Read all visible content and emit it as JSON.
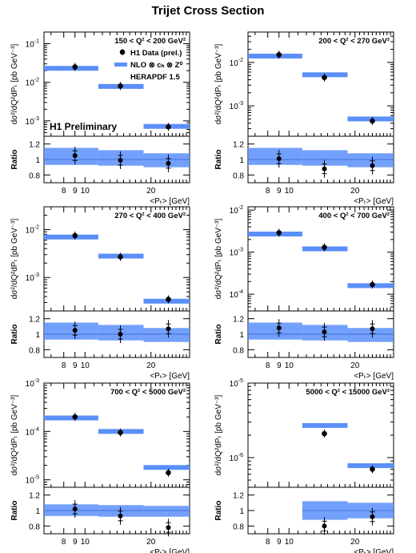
{
  "figure": {
    "title": "Trijet Cross Section",
    "accent_color": "#5b8ff9",
    "band_color": "#5b8ff9",
    "marker_color": "#000000"
  },
  "chart_data": [
    {
      "type": "scatter",
      "panel_label": "150 < Q² < 200 GeV²",
      "ylabel": "dσ²/dQ²dPₜ [pb GeV⁻³]",
      "ratio_ylabel": "Ratio",
      "xlabel": "<Pₜ> [GeV]",
      "x_scale": "log",
      "y_scale": "log",
      "xlim": [
        6.5,
        30
      ],
      "ylim": [
        0.0004,
        0.2
      ],
      "ratio_ylim": [
        0.7,
        1.3
      ],
      "x_tick_labels": [
        "8",
        "9",
        "10",
        "20"
      ],
      "ratio_tick_labels": [
        "0.8",
        "1",
        "1.2"
      ],
      "bins": [
        [
          6.5,
          11.5
        ],
        [
          11.5,
          18.5
        ],
        [
          18.5,
          30
        ]
      ],
      "data_x": [
        9,
        14.5,
        24
      ],
      "data_y": [
        0.025,
        0.008,
        0.0007
      ],
      "nlo_y": [
        0.023,
        0.0078,
        0.00072
      ],
      "ratio_values": [
        1.05,
        0.99,
        0.95
      ],
      "ratio_band": [
        [
          0.93,
          1.15
        ],
        [
          0.92,
          1.12
        ],
        [
          0.9,
          1.08
        ]
      ],
      "legend": [
        "H1 Data (prel.)",
        "NLO ⊗ cₕ ⊗ Z⁰",
        "HERAPDF 1.5"
      ],
      "annotation": "H1 Preliminary"
    },
    {
      "type": "scatter",
      "panel_label": "200 < Q² < 270 GeV²",
      "ylabel": "dσ²/dQ²dPₜ [pb GeV⁻³]",
      "ratio_ylabel": "Ratio",
      "xlabel": "<Pₜ> [GeV]",
      "x_scale": "log",
      "y_scale": "log",
      "xlim": [
        6.5,
        30
      ],
      "ylim": [
        0.0002,
        0.05
      ],
      "ratio_ylim": [
        0.7,
        1.3
      ],
      "x_tick_labels": [
        "8",
        "9",
        "10",
        "20"
      ],
      "ratio_tick_labels": [
        "0.8",
        "1",
        "1.2"
      ],
      "bins": [
        [
          6.5,
          11.5
        ],
        [
          11.5,
          18.5
        ],
        [
          18.5,
          30
        ]
      ],
      "data_x": [
        9,
        14.5,
        24
      ],
      "data_y": [
        0.015,
        0.0045,
        0.00045
      ],
      "nlo_y": [
        0.014,
        0.0052,
        0.0005
      ],
      "ratio_values": [
        1.01,
        0.88,
        0.92
      ],
      "ratio_band": [
        [
          0.93,
          1.15
        ],
        [
          0.92,
          1.12
        ],
        [
          0.9,
          1.08
        ]
      ]
    },
    {
      "type": "scatter",
      "panel_label": "270 < Q² < 400 GeV²",
      "ylabel": "dσ²/dQ²dPₜ [pb GeV⁻³]",
      "ratio_ylabel": "Ratio",
      "xlabel": "<Pₜ> [GeV]",
      "x_scale": "log",
      "y_scale": "log",
      "xlim": [
        6.5,
        30
      ],
      "ylim": [
        0.0002,
        0.03
      ],
      "ratio_ylim": [
        0.7,
        1.3
      ],
      "x_tick_labels": [
        "8",
        "9",
        "10",
        "20"
      ],
      "ratio_tick_labels": [
        "0.8",
        "1",
        "1.2"
      ],
      "bins": [
        [
          6.5,
          11.5
        ],
        [
          11.5,
          18.5
        ],
        [
          18.5,
          30
        ]
      ],
      "data_x": [
        9,
        14.5,
        24
      ],
      "data_y": [
        0.0075,
        0.0027,
        0.00035
      ],
      "nlo_y": [
        0.007,
        0.0028,
        0.00032
      ],
      "ratio_values": [
        1.05,
        1.0,
        1.07
      ],
      "ratio_band": [
        [
          0.93,
          1.15
        ],
        [
          0.92,
          1.12
        ],
        [
          0.9,
          1.08
        ]
      ]
    },
    {
      "type": "scatter",
      "panel_label": "400 < Q² < 700 GeV²",
      "ylabel": "dσ²/dQ²dPₜ [pb GeV⁻³]",
      "ratio_ylabel": "Ratio",
      "xlabel": "<Pₜ> [GeV]",
      "x_scale": "log",
      "y_scale": "log",
      "xlim": [
        6.5,
        30
      ],
      "ylim": [
        4e-05,
        0.012
      ],
      "ratio_ylim": [
        0.7,
        1.3
      ],
      "x_tick_labels": [
        "8",
        "9",
        "10",
        "20"
      ],
      "ratio_tick_labels": [
        "0.8",
        "1",
        "1.2"
      ],
      "bins": [
        [
          6.5,
          11.5
        ],
        [
          11.5,
          18.5
        ],
        [
          18.5,
          30
        ]
      ],
      "data_x": [
        9,
        14.5,
        24
      ],
      "data_y": [
        0.0029,
        0.0013,
        0.00017
      ],
      "nlo_y": [
        0.0027,
        0.0012,
        0.00016
      ],
      "ratio_values": [
        1.08,
        1.03,
        1.07
      ],
      "ratio_band": [
        [
          0.93,
          1.15
        ],
        [
          0.92,
          1.12
        ],
        [
          0.9,
          1.08
        ]
      ]
    },
    {
      "type": "scatter",
      "panel_label": "700 < Q² < 5000 GeV²",
      "ylabel": "dσ²/dQ²dPₜ [pb GeV⁻³]",
      "ratio_ylabel": "Ratio",
      "xlabel": "<Pₜ> [GeV]",
      "x_scale": "log",
      "y_scale": "log",
      "xlim": [
        6.5,
        30
      ],
      "ylim": [
        7e-06,
        0.001
      ],
      "ratio_ylim": [
        0.7,
        1.3
      ],
      "x_tick_labels": [
        "8",
        "9",
        "10",
        "20"
      ],
      "ratio_tick_labels": [
        "0.8",
        "1",
        "1.2"
      ],
      "bins": [
        [
          6.5,
          11.5
        ],
        [
          11.5,
          18.5
        ],
        [
          18.5,
          30
        ]
      ],
      "data_x": [
        9,
        14.5,
        24
      ],
      "data_y": [
        0.0002,
        9.5e-05,
        1.4e-05
      ],
      "nlo_y": [
        0.00019,
        0.0001,
        1.8e-05
      ],
      "ratio_values": [
        1.02,
        0.93,
        0.78
      ],
      "ratio_band": [
        [
          0.93,
          1.08
        ],
        [
          0.92,
          1.07
        ],
        [
          0.92,
          1.06
        ]
      ]
    },
    {
      "type": "scatter",
      "panel_label": "5000 < Q² < 15000 GeV²",
      "ylabel": "dσ²/dQ²dPₜ [pb GeV⁻³]",
      "ratio_ylabel": "Ratio",
      "xlabel": "<Pₜ> [GeV]",
      "x_scale": "log",
      "y_scale": "log",
      "xlim": [
        6.5,
        30
      ],
      "ylim": [
        4e-07,
        1e-05
      ],
      "ratio_ylim": [
        0.7,
        1.3
      ],
      "x_tick_labels": [
        "8",
        "9",
        "10",
        "20"
      ],
      "ratio_tick_labels": [
        "0.8",
        "1",
        "1.2"
      ],
      "bins": [
        [
          11.5,
          18.5
        ],
        [
          18.5,
          30
        ]
      ],
      "data_x": [
        14.5,
        24
      ],
      "data_y": [
        2.1e-06,
        7e-07
      ],
      "nlo_y": [
        2.7e-06,
        7.8e-07
      ],
      "ratio_values": [
        0.8,
        0.92
      ],
      "ratio_band": [
        [
          0.88,
          1.12
        ],
        [
          0.9,
          1.1
        ]
      ]
    }
  ]
}
